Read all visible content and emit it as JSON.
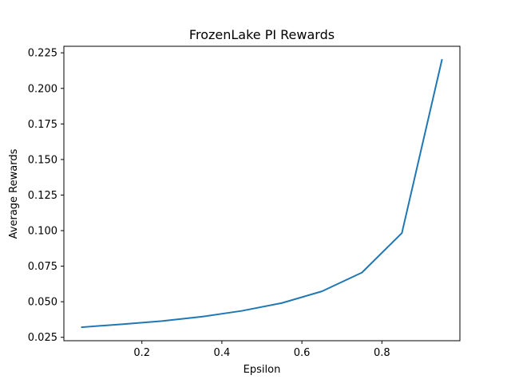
{
  "chart_data": {
    "type": "line",
    "title": "FrozenLake PI Rewards",
    "xlabel": "Epsilon",
    "ylabel": "Average Rewards",
    "xlim": [
      0.005,
      0.995
    ],
    "ylim": [
      0.0226,
      0.2296
    ],
    "x_ticks": [
      0.2,
      0.4,
      0.6,
      0.8
    ],
    "x_tick_labels": [
      "0.2",
      "0.4",
      "0.6",
      "0.8"
    ],
    "y_ticks": [
      0.025,
      0.05,
      0.075,
      0.1,
      0.125,
      0.15,
      0.175,
      0.2,
      0.225
    ],
    "y_tick_labels": [
      "0.025",
      "0.050",
      "0.075",
      "0.100",
      "0.125",
      "0.150",
      "0.175",
      "0.200",
      "0.225"
    ],
    "grid": false,
    "series": [
      {
        "color": "#1f77b4",
        "x": [
          0.05,
          0.15,
          0.25,
          0.35,
          0.45,
          0.55,
          0.65,
          0.75,
          0.85,
          0.95
        ],
        "y": [
          0.0321,
          0.0342,
          0.0364,
          0.0395,
          0.0436,
          0.0491,
          0.0573,
          0.0705,
          0.0983,
          0.22
        ]
      }
    ]
  }
}
